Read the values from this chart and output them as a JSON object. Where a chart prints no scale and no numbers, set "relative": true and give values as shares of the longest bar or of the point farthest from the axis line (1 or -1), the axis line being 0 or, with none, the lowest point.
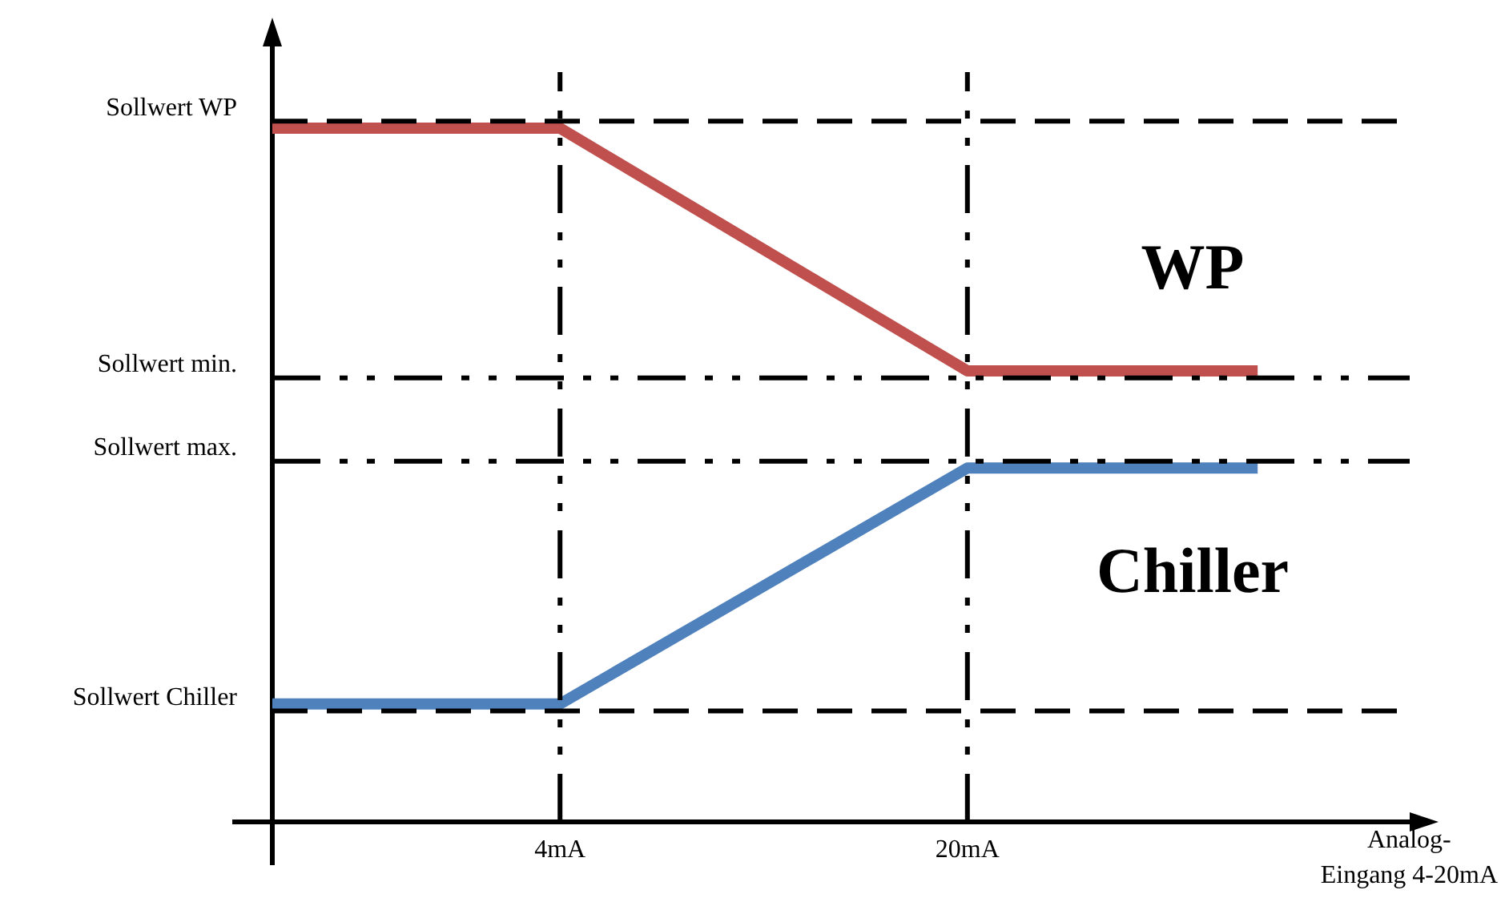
{
  "chart_data": {
    "type": "line",
    "relative": true,
    "xlabel": "Analog-\nEingang 4-20mA",
    "xlim": [
      -7.3,
      38
    ],
    "xticks": [
      {
        "value": 4,
        "label": "4mA"
      },
      {
        "value": 20,
        "label": "20mA"
      }
    ],
    "marker": "none",
    "line_style": "solid",
    "grid": false,
    "legend": false,
    "series": [
      {
        "name": "WP",
        "color": "#c0504d",
        "x": [
          -7.3,
          4,
          20,
          31.4
        ],
        "values": [
          1,
          1,
          0.65,
          0.65
        ]
      },
      {
        "name": "Chiller",
        "color": "#4f81bd",
        "x": [
          -7.3,
          4,
          20,
          31.4
        ],
        "values": [
          0.17,
          0.17,
          0.51,
          0.51
        ]
      }
    ],
    "ref_lines": [
      {
        "axis": "y",
        "value": 1.01,
        "label": "Sollwert WP",
        "color": "#000000",
        "line_style": "dashed"
      },
      {
        "axis": "y",
        "value": 0.64,
        "label": "Sollwert min.",
        "color": "#000000",
        "line_style": "dashdot"
      },
      {
        "axis": "y",
        "value": 0.52,
        "label": "Sollwert max.",
        "color": "#000000",
        "line_style": "dashdot"
      },
      {
        "axis": "y",
        "value": 0.16,
        "label": "Sollwert Chiller",
        "color": "#000000",
        "line_style": "dashed"
      },
      {
        "axis": "x",
        "value": 4,
        "color": "#000000",
        "line_style": "dashdot"
      },
      {
        "axis": "x",
        "value": 20,
        "color": "#000000",
        "line_style": "dashdot"
      }
    ]
  }
}
